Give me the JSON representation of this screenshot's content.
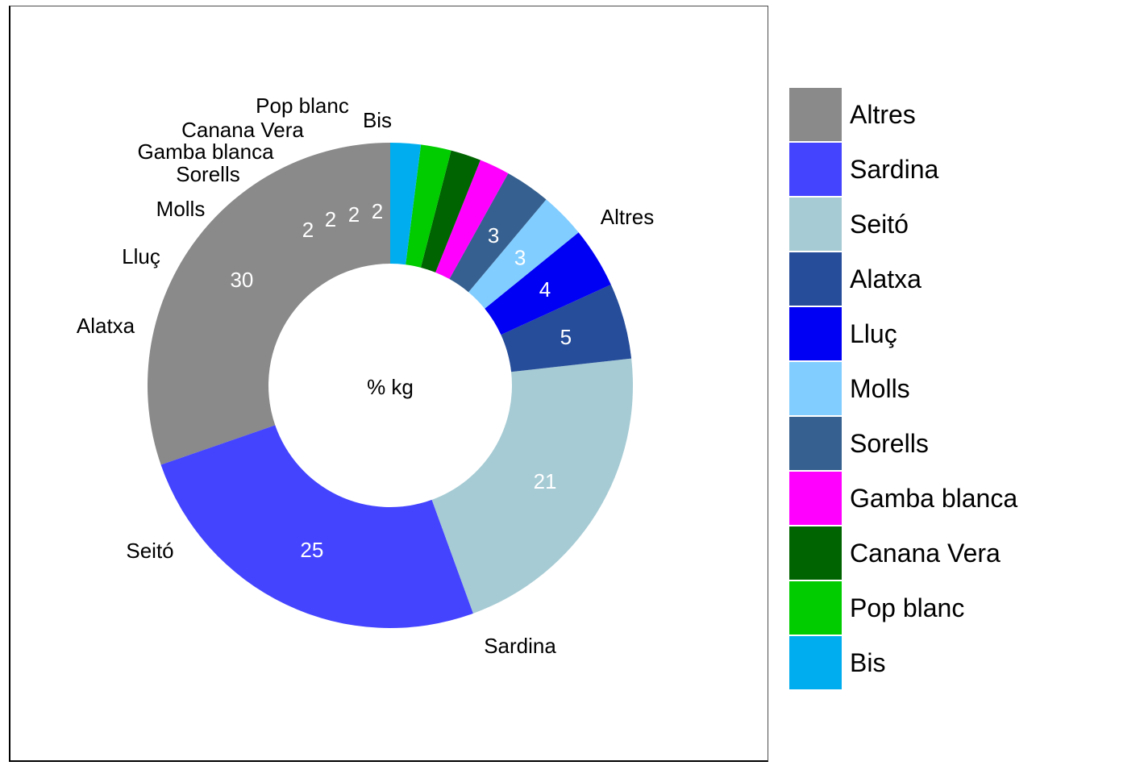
{
  "chart_data": {
    "type": "pie",
    "subtype": "donut",
    "center_label": "% kg",
    "legend_position": "right",
    "slices": [
      {
        "label": "Altres",
        "value": 30,
        "color": "#8a8a8a",
        "value_label": "30"
      },
      {
        "label": "Sardina",
        "value": 25,
        "color": "#4444ff",
        "value_label": "25"
      },
      {
        "label": "Seitó",
        "value": 21,
        "color": "#a6cbd4",
        "value_label": "21"
      },
      {
        "label": "Alatxa",
        "value": 5,
        "color": "#264d9a",
        "value_label": "5"
      },
      {
        "label": "Lluç",
        "value": 4,
        "color": "#0000f5",
        "value_label": "4"
      },
      {
        "label": "Molls",
        "value": 3,
        "color": "#82cdff",
        "value_label": "3"
      },
      {
        "label": "Sorells",
        "value": 3,
        "color": "#36608f",
        "value_label": "3"
      },
      {
        "label": "Gamba blanca",
        "value": 2,
        "color": "#ff00ff",
        "value_label": "2"
      },
      {
        "label": "Canana Vera",
        "value": 2,
        "color": "#006400",
        "value_label": "2"
      },
      {
        "label": "Pop blanc",
        "value": 2,
        "color": "#00cc00",
        "value_label": "2"
      },
      {
        "label": "Bis",
        "value": 2,
        "color": "#00aeef",
        "value_label": "2"
      }
    ]
  }
}
